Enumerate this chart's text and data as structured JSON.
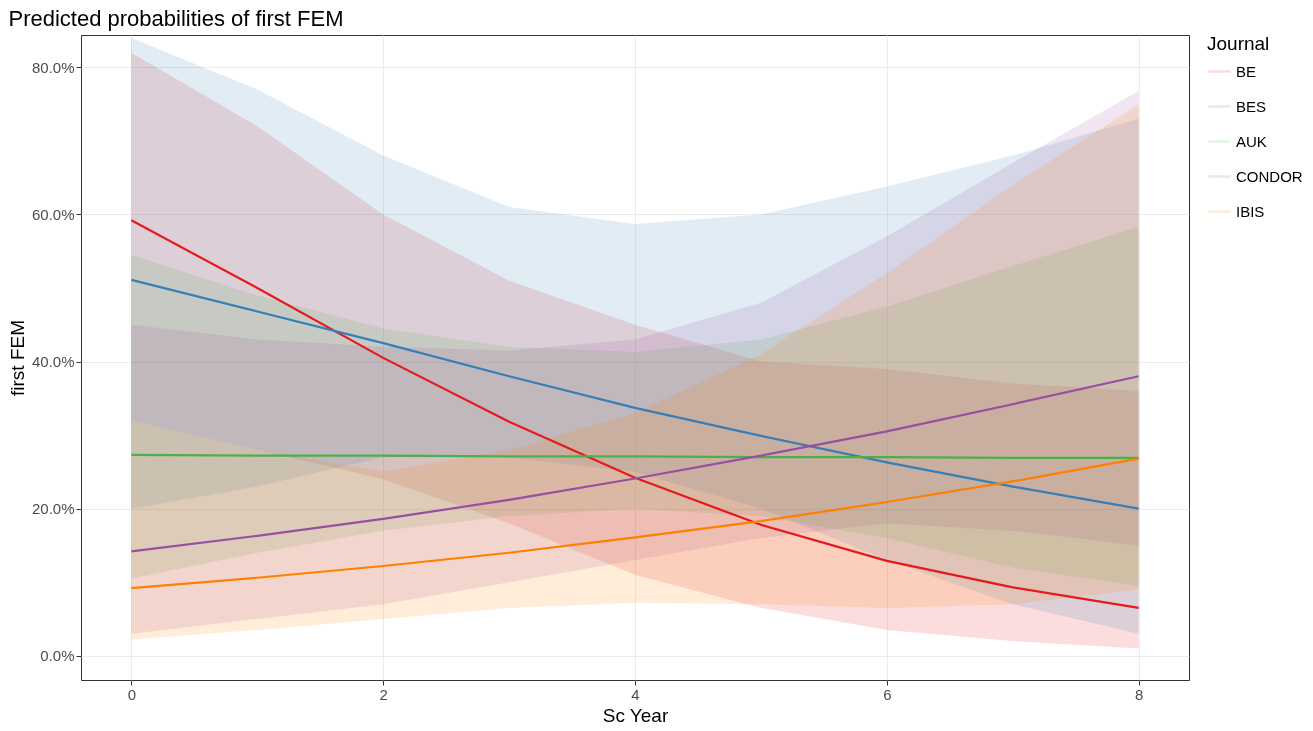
{
  "chart_data": {
    "type": "line",
    "title": "Predicted probabilities of first FEM",
    "xlabel": "Sc Year",
    "ylabel": "first FEM",
    "legend_title": "Journal",
    "x": [
      0,
      1,
      2,
      3,
      4,
      5,
      6,
      7,
      8
    ],
    "series": [
      {
        "name": "BE",
        "color": "#e41a1c",
        "values": [
          59.2,
          50,
          40.5,
          31.8,
          24.2,
          17.8,
          12.9,
          9.3,
          6.5
        ],
        "lower": [
          32,
          28,
          24,
          18,
          11,
          6.5,
          3.5,
          2,
          1
        ],
        "upper": [
          82,
          72,
          60,
          51,
          45,
          40,
          39,
          37,
          36
        ]
      },
      {
        "name": "BES",
        "color": "#377eb8",
        "values": [
          51.1,
          46.8,
          42.5,
          38,
          33.7,
          29.9,
          26.3,
          23,
          20
        ],
        "lower": [
          20,
          23,
          27,
          27,
          25,
          20,
          13,
          7,
          3
        ],
        "upper": [
          84,
          77,
          68,
          61,
          58.7,
          60,
          63.8,
          68,
          73
        ]
      },
      {
        "name": "AUK",
        "color": "#4daf4a",
        "values": [
          27.3,
          27.2,
          27.2,
          27.1,
          27.1,
          27,
          27,
          26.9,
          26.9
        ],
        "lower": [
          10.5,
          14,
          17,
          19,
          20,
          19,
          16,
          12,
          9.5
        ],
        "upper": [
          54.5,
          49,
          44.5,
          42,
          41.3,
          43,
          47.5,
          53,
          58.3
        ]
      },
      {
        "name": "CONDOR",
        "color": "#984ea3",
        "values": [
          14.2,
          16.3,
          18.6,
          21.2,
          24.1,
          27.2,
          30.5,
          34.2,
          38
        ],
        "lower": [
          3,
          5,
          7,
          10,
          13,
          16,
          18,
          17,
          15
        ],
        "upper": [
          45,
          43,
          42,
          41.5,
          43,
          48,
          57,
          67,
          76.8
        ]
      },
      {
        "name": "IBIS",
        "color": "#ff7f00",
        "values": [
          9.2,
          10.6,
          12.2,
          14,
          16.1,
          18.3,
          20.9,
          23.7,
          26.8
        ],
        "lower": [
          2.2,
          3.5,
          5,
          6.5,
          7.2,
          7,
          6.5,
          7,
          9
        ],
        "upper": [
          32,
          28,
          25,
          28,
          33,
          41,
          52,
          64,
          75
        ]
      }
    ],
    "xlim": [
      -0.4,
      8.4
    ],
    "ylim": [
      -3.3,
      84.4
    ],
    "xticks": [
      0,
      2,
      4,
      6,
      8
    ],
    "yticks": [
      {
        "value": 0,
        "label": "0.0%"
      },
      {
        "value": 20,
        "label": "20.0%"
      },
      {
        "value": 40,
        "label": "40.0%"
      },
      {
        "value": 60,
        "label": "60.0%"
      },
      {
        "value": 80,
        "label": "80.0%"
      }
    ],
    "grid": true,
    "legend": "right"
  }
}
